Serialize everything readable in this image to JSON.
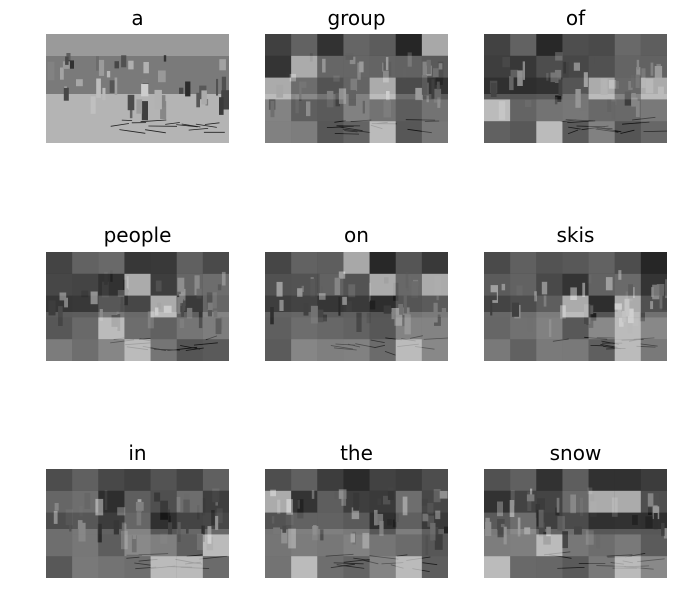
{
  "figure": {
    "panels": [
      {
        "word": "a"
      },
      {
        "word": "group"
      },
      {
        "word": "of"
      },
      {
        "word": "people"
      },
      {
        "word": "on"
      },
      {
        "word": "skis"
      },
      {
        "word": "in"
      },
      {
        "word": "the"
      },
      {
        "word": "snow"
      }
    ]
  }
}
